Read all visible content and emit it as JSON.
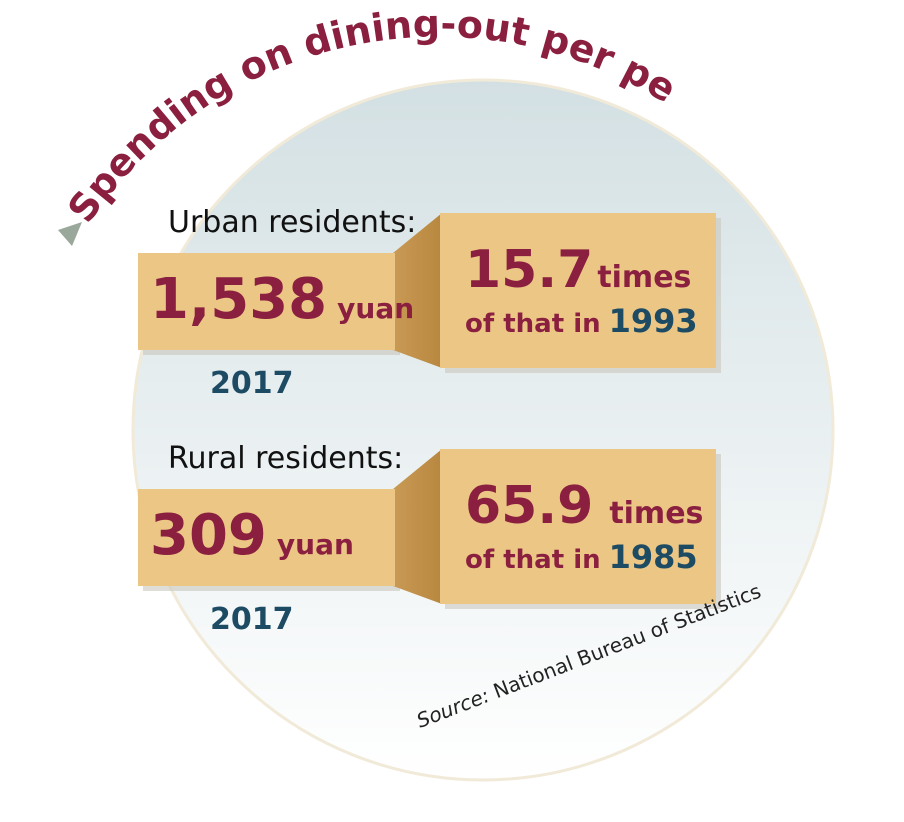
{
  "title": "Spending on dining-out per person",
  "sections": [
    {
      "label": "Urban residents:",
      "amount": "1,538",
      "unit": "yuan",
      "year": "2017",
      "multiple": "15.7",
      "times": "times",
      "of_that_in": "of that in",
      "base_year": "1993"
    },
    {
      "label": "Rural residents:",
      "amount": "309",
      "unit": "yuan",
      "year": "2017",
      "multiple": "65.9",
      "times": "times",
      "of_that_in": "of that in",
      "base_year": "1985"
    }
  ],
  "source": {
    "prefix": "Source:",
    "text": "National Bureau of Statistics"
  }
}
